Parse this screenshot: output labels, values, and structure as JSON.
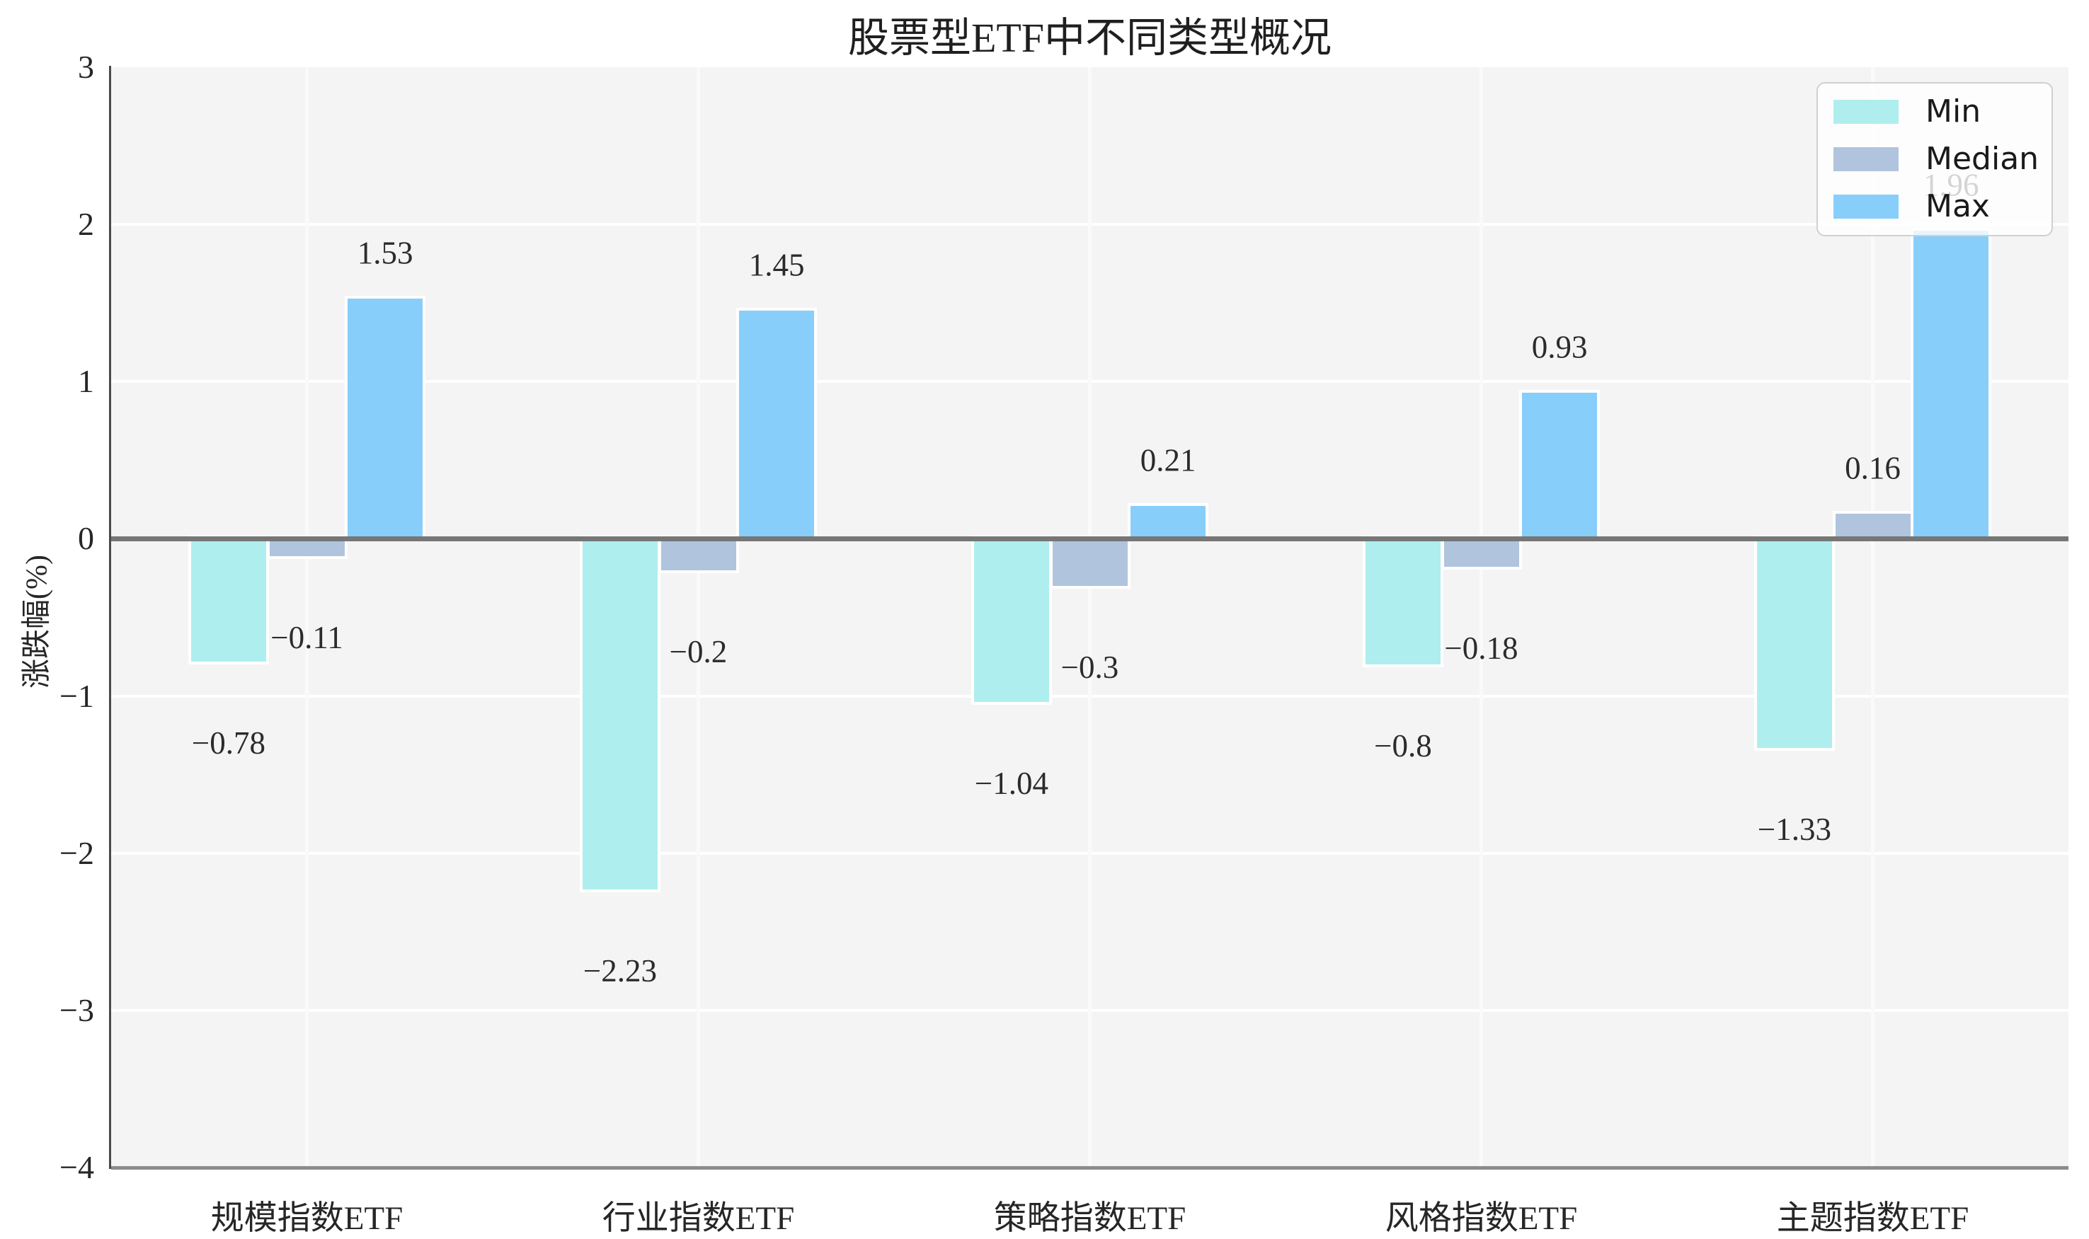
{
  "title": "股票型ETF中不同类型概况",
  "chart_data": {
    "type": "bar",
    "title": "股票型ETF中不同类型概况",
    "xlabel": "",
    "ylabel": "涨跌幅(%)",
    "categories": [
      "规模指数ETF",
      "行业指数ETF",
      "策略指数ETF",
      "风格指数ETF",
      "主题指数ETF"
    ],
    "series": [
      {
        "name": "Min",
        "color": "#AFEEEE",
        "values": [
          -0.78,
          -2.23,
          -1.04,
          -0.8,
          -1.33
        ]
      },
      {
        "name": "Median",
        "color": "#B0C4DE",
        "values": [
          -0.11,
          -0.2,
          -0.3,
          -0.18,
          0.16
        ]
      },
      {
        "name": "Max",
        "color": "#87CEFA",
        "values": [
          1.53,
          1.45,
          0.21,
          0.93,
          1.96
        ]
      }
    ],
    "ylim": [
      -4,
      3
    ],
    "yticks": [
      3,
      2,
      1,
      0,
      -1,
      -2,
      -3,
      -4
    ],
    "grid": true,
    "bar_labels": true,
    "legend_position": "upper right"
  },
  "colors": {
    "plot_background": "#f4f4f5",
    "grid_horizontal": "#ffffff",
    "grid_vertical": "#fafafa",
    "zero_line": "#767676",
    "left_spine": "#4a4a4a",
    "bottom_spine": "#8c8c8c",
    "text": "#262626",
    "legend_border": "#d0d0d0"
  }
}
